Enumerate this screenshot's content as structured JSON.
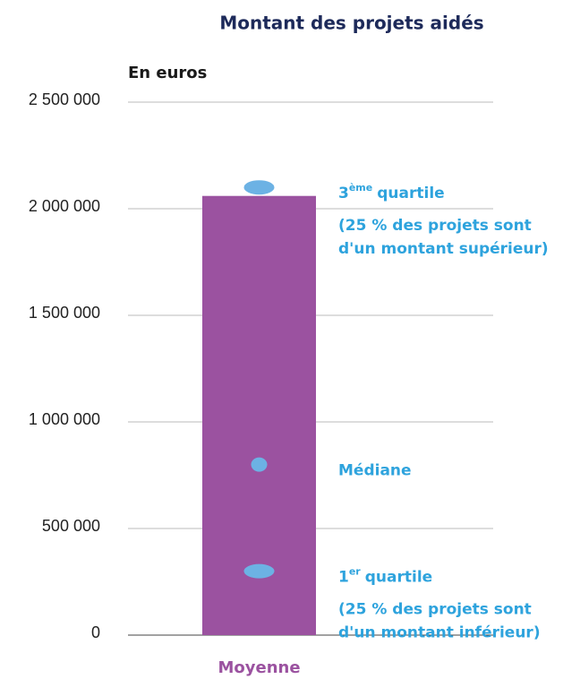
{
  "chart_data": {
    "type": "bar",
    "title": "Montant des projets aidés",
    "y_label": "En euros",
    "categories": [
      "Moyenne"
    ],
    "values": [
      2060000
    ],
    "color": "#9b52a0",
    "ylim": [
      0,
      2500000
    ],
    "yticks": [
      0,
      {
        "value": 500000,
        "label": "500 000"
      },
      {
        "value": 1000000,
        "label": "1 000 000"
      },
      {
        "value": 1500000,
        "label": "1 500 000"
      },
      {
        "value": 2000000,
        "label": "2 000 000"
      },
      {
        "value": 2500000,
        "label": "2 500 000"
      }
    ],
    "grid": true,
    "marker_color": "#6cb2e4",
    "markers": [
      {
        "label": [
          "3",
          "ème",
          "quartile"
        ],
        "value": 2100000,
        "note": [
          "(25 % des projets sont",
          "d'un montant supérieur)"
        ]
      },
      {
        "label": [
          "Médiane"
        ],
        "value": 800000
      },
      {
        "label": [
          "1",
          "er",
          "quartile"
        ],
        "value": 300000,
        "note": [
          "(25 % des projets sont",
          "d'un montant inférieur)"
        ]
      }
    ]
  }
}
